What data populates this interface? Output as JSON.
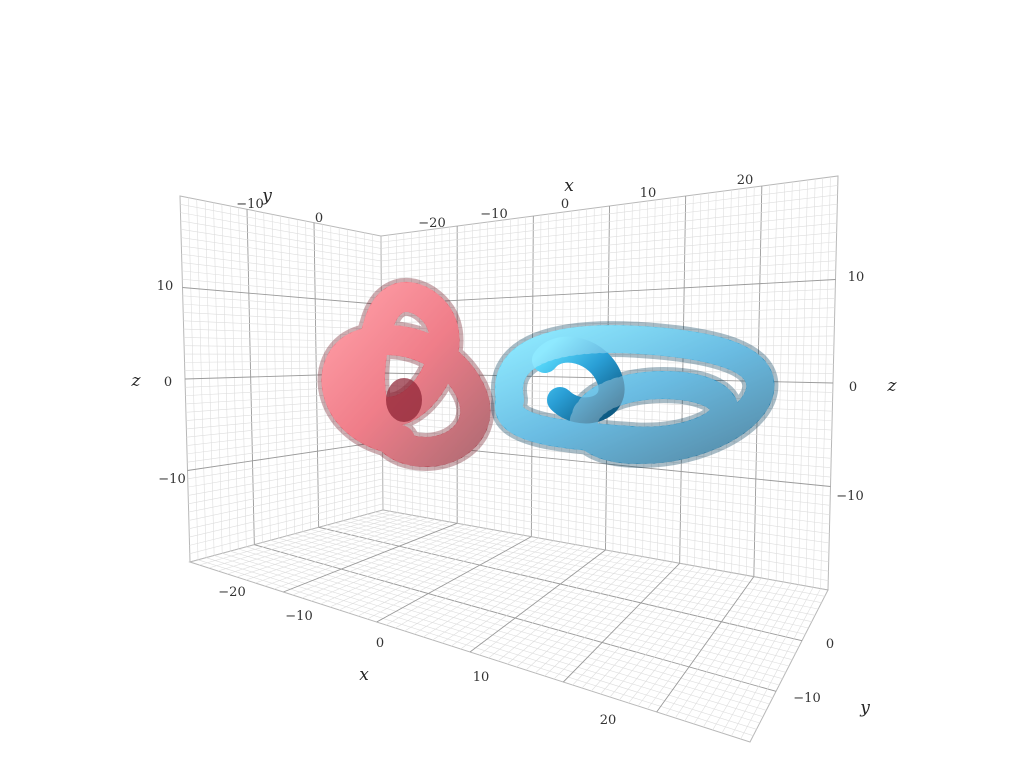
{
  "chart_data": {
    "type": "surface",
    "series": [
      {
        "knot": "trefoil",
        "color": "#e8394b"
      },
      {
        "knot": "torus-knot",
        "color": "#2a9fd6"
      }
    ],
    "grid": true,
    "axes": {
      "x": {
        "label": "x",
        "floor_ticks": [
          "−20",
          "−10",
          "0",
          "10",
          "20"
        ],
        "top_ticks": [
          "−20",
          "−10",
          "0",
          "10",
          "20"
        ]
      },
      "y": {
        "label": "y",
        "left_ticks": [
          "−10",
          "0"
        ],
        "right_ticks": [
          "0",
          "−10"
        ]
      },
      "z": {
        "label": "z",
        "left_ticks": [
          "10",
          "0",
          "−10"
        ],
        "right_ticks": [
          "10",
          "0",
          "−10"
        ]
      }
    }
  }
}
